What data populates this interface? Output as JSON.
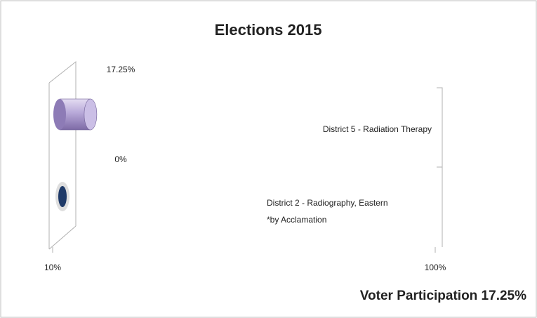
{
  "chart_data": {
    "type": "bar",
    "orientation": "horizontal",
    "title": "Elections 2015",
    "categories": [
      "District 5 - Radiation Therapy",
      "District 2 - Radiography, Eastern\n*by Acclamation"
    ],
    "series": [
      {
        "name": "Voter Participation",
        "color": "#b7a8d8",
        "values": [
          17.25,
          0
        ],
        "value_labels": [
          "17.25%",
          "0%"
        ],
        "colors": [
          "#b7a8d8",
          "#1f3a68"
        ]
      }
    ],
    "xlim": [
      10,
      100
    ],
    "xticks": [
      {
        "value": 10,
        "label": "10%"
      },
      {
        "value": 100,
        "label": "100%"
      }
    ],
    "annotation": "Voter Participation 17.25%"
  }
}
